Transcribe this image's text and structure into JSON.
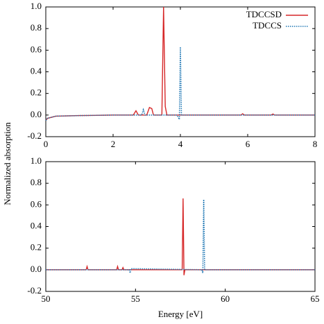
{
  "chart_data": [
    {
      "type": "line",
      "ylabel": "Normalized absorption",
      "xlim": [
        0,
        8
      ],
      "xticks": [
        0,
        2,
        4,
        6,
        8
      ],
      "ylim": [
        -0.2,
        1.0
      ],
      "yticks": [
        -0.2,
        {
          "value": 0,
          "label": "0.0"
        },
        0.2,
        0.4,
        0.6,
        0.8,
        {
          "value": 1,
          "label": "1.0"
        }
      ],
      "legend": "upper right",
      "series": [
        {
          "name": "TDCCSD",
          "color": "#d62728",
          "style": "solid",
          "x": [
            0,
            0.05,
            0.3,
            1,
            2,
            2.6,
            2.68,
            2.75,
            3.0,
            3.08,
            3.15,
            3.2,
            3.45,
            3.5,
            3.55,
            3.6,
            4,
            5.8,
            5.85,
            5.9,
            6.7,
            6.75,
            6.8,
            8
          ],
          "values": [
            -0.05,
            -0.03,
            -0.01,
            -0.005,
            0,
            0,
            0.04,
            0,
            0,
            0.07,
            0.06,
            0,
            0,
            1.0,
            0.08,
            0,
            0,
            0,
            0.012,
            0,
            0,
            0.01,
            0,
            0
          ]
        },
        {
          "name": "TDCCS",
          "color": "#1f77b4",
          "style": "dotted",
          "x": [
            0,
            0.05,
            0.3,
            1,
            2,
            2.85,
            2.9,
            2.95,
            3.9,
            3.97,
            4.0,
            4.03,
            4.1,
            8
          ],
          "values": [
            -0.05,
            -0.03,
            -0.01,
            -0.005,
            0,
            0,
            0.05,
            0,
            0,
            -0.04,
            0.63,
            0,
            0,
            0
          ]
        }
      ]
    },
    {
      "type": "line",
      "xlabel": "Energy [eV]",
      "xlim": [
        50,
        65
      ],
      "xticks": [
        50,
        55,
        60,
        65
      ],
      "ylim": [
        -0.2,
        1.0
      ],
      "yticks": [
        -0.2,
        {
          "value": 0,
          "label": "0.0"
        },
        0.2,
        0.4,
        0.6,
        0.8,
        {
          "value": 1,
          "label": "1.0"
        }
      ],
      "series": [
        {
          "color": "#d62728",
          "style": "solid",
          "x": [
            50,
            52.25,
            52.3,
            52.35,
            53.95,
            54.0,
            54.05,
            54.25,
            54.3,
            54.35,
            57.6,
            57.65,
            57.7,
            57.75,
            57.8,
            65
          ],
          "values": [
            0,
            0,
            0.03,
            0,
            0,
            0.03,
            0,
            0,
            0.02,
            0,
            0,
            0.66,
            -0.05,
            0,
            0,
            0
          ]
        },
        {
          "color": "#1f77b4",
          "style": "dotted",
          "x": [
            50,
            54.65,
            54.7,
            54.75,
            58.7,
            58.75,
            58.8,
            58.85,
            65
          ],
          "values": [
            0,
            0,
            -0.03,
            0.01,
            0,
            -0.03,
            0.65,
            0,
            0
          ]
        }
      ]
    }
  ]
}
